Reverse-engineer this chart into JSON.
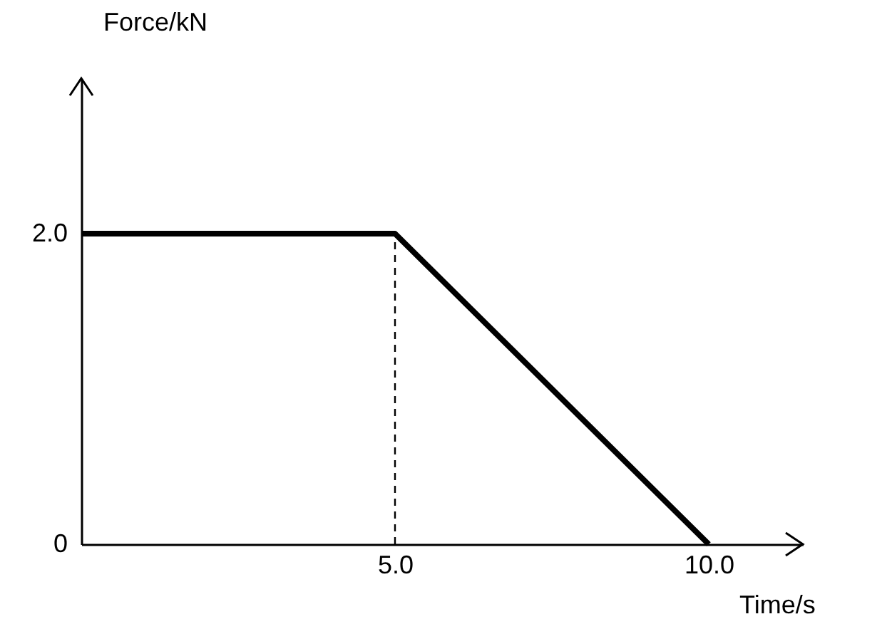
{
  "chart_data": {
    "type": "line",
    "xlabel": "Time/s",
    "ylabel": "Force/kN",
    "xlim": [
      0,
      11.5
    ],
    "ylim": [
      0,
      3
    ],
    "xticks": [
      {
        "value": 5,
        "label": "5.0"
      },
      {
        "value": 10,
        "label": "10.0"
      }
    ],
    "yticks": [
      0,
      {
        "value": 2,
        "label": "2.0"
      }
    ],
    "series": [
      {
        "x": [
          0,
          5,
          10
        ],
        "values": [
          2,
          2,
          0
        ],
        "color": "#000000",
        "line_style": "solid"
      },
      {
        "x": [
          5,
          5
        ],
        "values": [
          0,
          2
        ],
        "color": "#000000",
        "line_style": "dashed"
      }
    ],
    "grid": false,
    "marker": "none"
  }
}
